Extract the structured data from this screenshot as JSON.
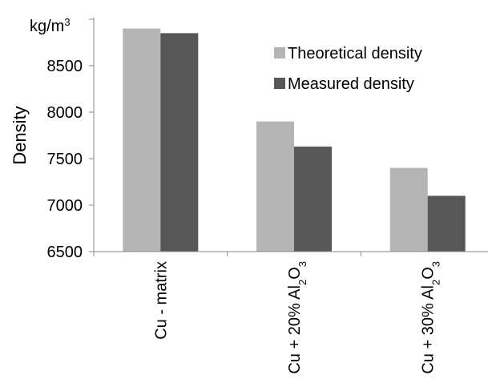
{
  "chart_data": {
    "type": "bar",
    "ylabel": "Density",
    "yunit": "kg/m³",
    "ylim": [
      6500,
      9000
    ],
    "yticks": [
      6500,
      7000,
      7500,
      8000,
      8500
    ],
    "grid": false,
    "legend_position": "top-right",
    "categories": [
      {
        "label": "Cu - matrix",
        "parts": [
          {
            "t": "Cu - matrix"
          }
        ]
      },
      {
        "label": "Cu + 20% Al2O3",
        "parts": [
          {
            "t": "Cu + 20% Al"
          },
          {
            "t": "2",
            "sub": true
          },
          {
            "t": "O"
          },
          {
            "t": "3",
            "sub": true
          }
        ]
      },
      {
        "label": "Cu + 30% Al2O3",
        "parts": [
          {
            "t": "Cu + 30% Al"
          },
          {
            "t": "2",
            "sub": true
          },
          {
            "t": "O"
          },
          {
            "t": "3",
            "sub": true
          }
        ]
      }
    ],
    "series": [
      {
        "name": "Theoretical density",
        "color": "#b4b4b4",
        "values": [
          8900,
          7900,
          7400
        ]
      },
      {
        "name": "Measured density",
        "color": "#575757",
        "values": [
          8850,
          7630,
          7100
        ]
      }
    ]
  }
}
